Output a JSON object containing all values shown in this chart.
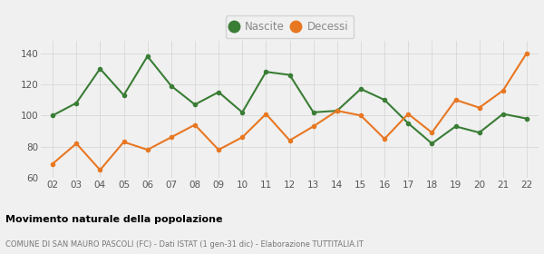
{
  "years": [
    "02",
    "03",
    "04",
    "05",
    "06",
    "07",
    "08",
    "09",
    "10",
    "11",
    "12",
    "13",
    "14",
    "15",
    "16",
    "17",
    "18",
    "19",
    "20",
    "21",
    "22"
  ],
  "nascite": [
    100,
    108,
    130,
    113,
    138,
    119,
    107,
    115,
    102,
    128,
    126,
    102,
    103,
    117,
    110,
    95,
    82,
    93,
    89,
    101,
    98
  ],
  "decessi": [
    69,
    82,
    65,
    83,
    78,
    86,
    94,
    78,
    86,
    101,
    84,
    93,
    103,
    100,
    85,
    101,
    89,
    110,
    105,
    116,
    140
  ],
  "nascite_color": "#3a7d35",
  "decessi_color": "#e87722",
  "bg_color": "#f0f0f0",
  "grid_color": "#d8d8d8",
  "ylim_min": 60,
  "ylim_max": 148,
  "yticks": [
    60,
    80,
    100,
    120,
    140
  ],
  "title": "Movimento naturale della popolazione",
  "subtitle": "COMUNE DI SAN MAURO PASCOLI (FC) - Dati ISTAT (1 gen-31 dic) - Elaborazione TUTTITALIA.IT",
  "legend_nascite": "Nascite",
  "legend_decessi": "Decessi",
  "marker_size": 4,
  "linewidth": 1.5,
  "legend_text_color": "#888888"
}
